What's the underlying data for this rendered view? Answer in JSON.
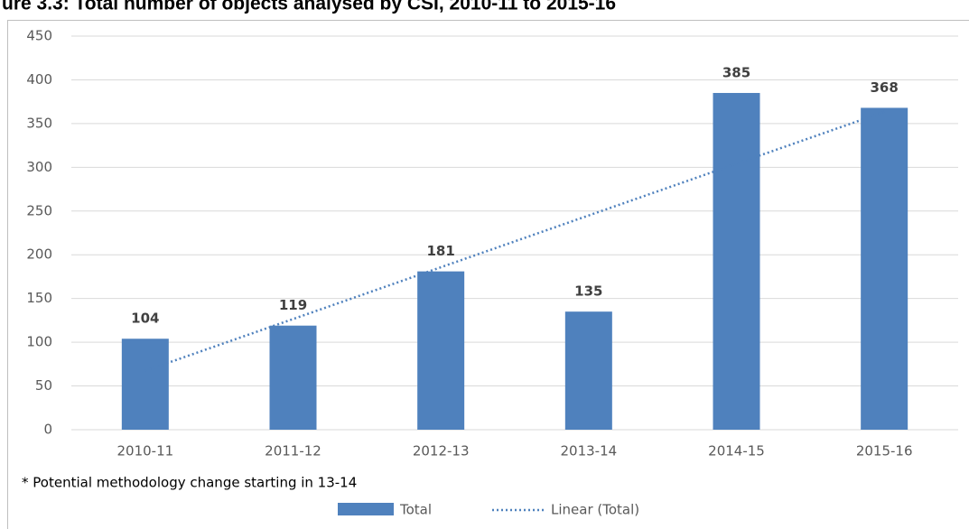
{
  "chart_data": {
    "type": "bar",
    "title": "ure 3.3: Total number of objects analysed by CSI, 2010-11 to 2015-16",
    "categories": [
      "2010-11",
      "2011-12",
      "2012-13",
      "2013-14",
      "2014-15",
      "2015-16"
    ],
    "series": [
      {
        "name": "Total",
        "color": "#4f81bd",
        "values": [
          104,
          119,
          181,
          135,
          385,
          368
        ]
      }
    ],
    "trendline": {
      "name": "Linear (Total)",
      "color": "#4f81bd"
    },
    "note": "* Potential methodology change starting in 13-14",
    "ylim": [
      0,
      450
    ],
    "yticks": [
      0,
      50,
      100,
      150,
      200,
      250,
      300,
      350,
      400,
      450
    ],
    "grid": true
  }
}
